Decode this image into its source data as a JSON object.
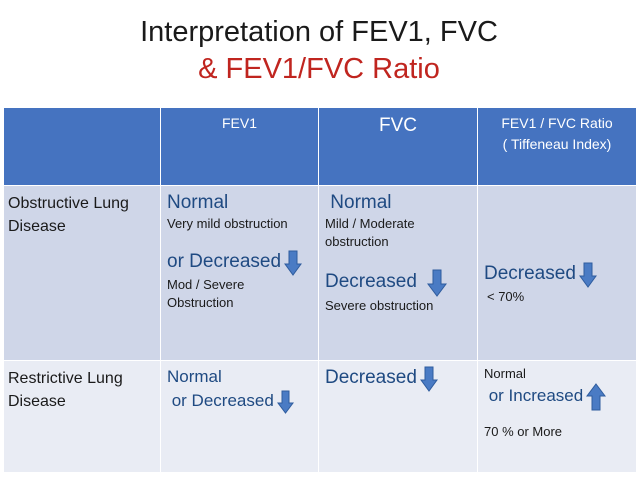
{
  "title": {
    "line1": "Interpretation of FEV1,  FVC",
    "line2": "& FEV1/FVC Ratio"
  },
  "header": {
    "blank": "",
    "fev1": "FEV1",
    "fvc": "FVC",
    "ratio_line1": "FEV1 / FVC Ratio",
    "ratio_line2": "( Tiffeneau Index)"
  },
  "rows": {
    "obstructive": {
      "label_line1": "Obstructive Lung",
      "label_line2": "Disease",
      "fev1_main": "Normal",
      "fev1_sub": "Very mild obstruction",
      "fev1_main2": "or Decreased",
      "fev1_sub2_line1": "Mod / Severe",
      "fev1_sub2_line2": "Obstruction",
      "fvc_main": " Normal",
      "fvc_sub_line1": "Mild / Moderate",
      "fvc_sub_line2": "obstruction",
      "fvc_main2": "Decreased",
      "fvc_sub2": "Severe obstruction",
      "ratio_main": "Decreased",
      "ratio_sub": "< 70%"
    },
    "restrictive": {
      "label_line1": "Restrictive Lung",
      "label_line2": "Disease",
      "fev1_main": "Normal",
      "fev1_main2": " or Decreased",
      "fvc_main": "Decreased",
      "ratio_sub": "Normal",
      "ratio_main": " or Increased",
      "ratio_sub2": "70 % or More"
    }
  },
  "icons": {
    "down": "arrow-down-icon",
    "up": "arrow-up-icon",
    "color": "#4a7bc4"
  }
}
